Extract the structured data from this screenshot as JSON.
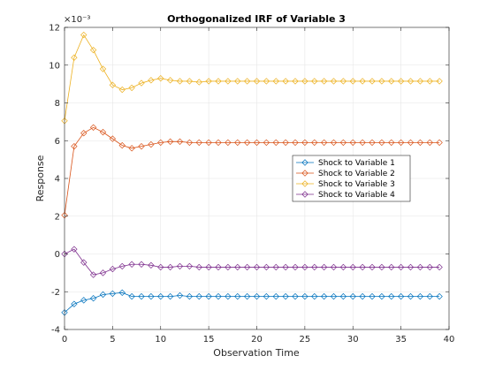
{
  "chart_data": {
    "type": "line",
    "title": "Orthogonalized IRF of Variable 3",
    "xlabel": "Observation Time",
    "ylabel": "Response",
    "exponent_label": "×10⁻³",
    "xlim": [
      0,
      40
    ],
    "ylim": [
      -4,
      12
    ],
    "x_ticks": [
      0,
      5,
      10,
      15,
      20,
      25,
      30,
      35,
      40
    ],
    "y_ticks": [
      -4,
      -2,
      0,
      2,
      4,
      6,
      8,
      10,
      12
    ],
    "grid": true,
    "legend_position": "right-center",
    "x": [
      0,
      1,
      2,
      3,
      4,
      5,
      6,
      7,
      8,
      9,
      10,
      11,
      12,
      13,
      14,
      15,
      16,
      17,
      18,
      19,
      20,
      21,
      22,
      23,
      24,
      25,
      26,
      27,
      28,
      29,
      30,
      31,
      32,
      33,
      34,
      35,
      36,
      37,
      38,
      39
    ],
    "series": [
      {
        "name": "Shock to Variable 1",
        "color": "#0072BD",
        "values": [
          -3.1,
          -2.65,
          -2.45,
          -2.35,
          -2.15,
          -2.1,
          -2.05,
          -2.25,
          -2.25,
          -2.25,
          -2.25,
          -2.25,
          -2.2,
          -2.25,
          -2.25,
          -2.25,
          -2.25,
          -2.25,
          -2.25,
          -2.25,
          -2.25,
          -2.25,
          -2.25,
          -2.25,
          -2.25,
          -2.25,
          -2.25,
          -2.25,
          -2.25,
          -2.25,
          -2.25,
          -2.25,
          -2.25,
          -2.25,
          -2.25,
          -2.25,
          -2.25,
          -2.25,
          -2.25,
          -2.25
        ]
      },
      {
        "name": "Shock to Variable 2",
        "color": "#D95319",
        "values": [
          2.05,
          5.7,
          6.4,
          6.7,
          6.45,
          6.1,
          5.75,
          5.6,
          5.7,
          5.8,
          5.9,
          5.95,
          5.95,
          5.9,
          5.9,
          5.9,
          5.9,
          5.9,
          5.9,
          5.9,
          5.9,
          5.9,
          5.9,
          5.9,
          5.9,
          5.9,
          5.9,
          5.9,
          5.9,
          5.9,
          5.9,
          5.9,
          5.9,
          5.9,
          5.9,
          5.9,
          5.9,
          5.9,
          5.9,
          5.9
        ]
      },
      {
        "name": "Shock to Variable 3",
        "color": "#EDB120",
        "values": [
          7.05,
          10.4,
          11.6,
          10.8,
          9.8,
          8.95,
          8.7,
          8.8,
          9.05,
          9.2,
          9.3,
          9.2,
          9.15,
          9.15,
          9.1,
          9.15,
          9.15,
          9.15,
          9.15,
          9.15,
          9.15,
          9.15,
          9.15,
          9.15,
          9.15,
          9.15,
          9.15,
          9.15,
          9.15,
          9.15,
          9.15,
          9.15,
          9.15,
          9.15,
          9.15,
          9.15,
          9.15,
          9.15,
          9.15,
          9.15
        ]
      },
      {
        "name": "Shock to Variable 4",
        "color": "#7E2F8E",
        "values": [
          0.0,
          0.25,
          -0.45,
          -1.1,
          -1.0,
          -0.8,
          -0.65,
          -0.55,
          -0.55,
          -0.6,
          -0.7,
          -0.7,
          -0.65,
          -0.65,
          -0.7,
          -0.7,
          -0.7,
          -0.7,
          -0.7,
          -0.7,
          -0.7,
          -0.7,
          -0.7,
          -0.7,
          -0.7,
          -0.7,
          -0.7,
          -0.7,
          -0.7,
          -0.7,
          -0.7,
          -0.7,
          -0.7,
          -0.7,
          -0.7,
          -0.7,
          -0.7,
          -0.7,
          -0.7,
          -0.7
        ]
      }
    ]
  }
}
